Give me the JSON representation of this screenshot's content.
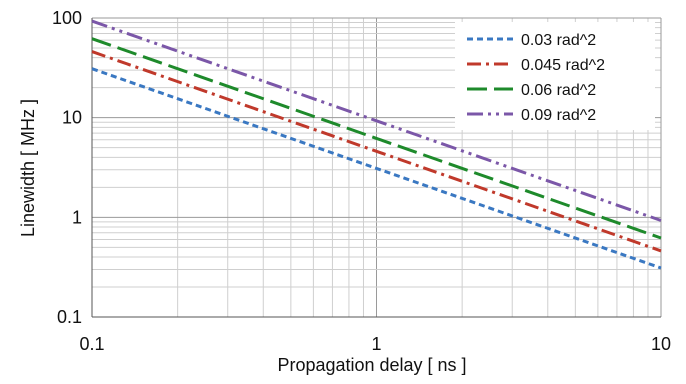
{
  "chart_data": {
    "type": "line",
    "xlabel": "Propagation delay  [ ns ]",
    "ylabel": "Linewidth [ MHz ]",
    "x_scale": "log",
    "y_scale": "log",
    "xlim": [
      0.1,
      10
    ],
    "ylim": [
      0.1,
      100
    ],
    "x_ticks": [
      "0.1",
      "1",
      "10"
    ],
    "y_ticks": [
      "0.1",
      "1",
      "10",
      "100"
    ],
    "grid": "major and minor",
    "legend_position": "top-right",
    "series": [
      {
        "name": "0.03 rad^2",
        "color": "#3a78c2",
        "dash": "short-dash",
        "x": [
          0.1,
          1,
          10
        ],
        "y": [
          31,
          3.1,
          0.31
        ]
      },
      {
        "name": "0.045 rad^2",
        "color": "#c0392b",
        "dash": "dash-dot",
        "x": [
          0.1,
          1,
          10
        ],
        "y": [
          46,
          4.6,
          0.46
        ]
      },
      {
        "name": "0.06 rad^2",
        "color": "#1e8a2b",
        "dash": "long-dash",
        "x": [
          0.1,
          1,
          10
        ],
        "y": [
          62,
          6.2,
          0.62
        ]
      },
      {
        "name": "0.09 rad^2",
        "color": "#7b57a8",
        "dash": "dash-dot-dot",
        "x": [
          0.1,
          1,
          10
        ],
        "y": [
          93,
          9.3,
          0.93
        ]
      }
    ]
  }
}
